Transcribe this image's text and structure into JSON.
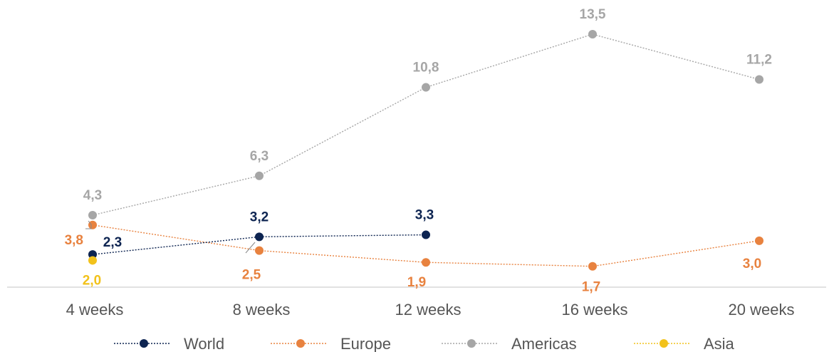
{
  "chart_data": {
    "type": "line",
    "categories": [
      "4 weeks",
      "8 weeks",
      "12 weeks",
      "16 weeks",
      "20 weeks"
    ],
    "series": [
      {
        "name": "World",
        "color": "#0d2451",
        "values": [
          2.3,
          3.2,
          3.3,
          null,
          null
        ],
        "labels": [
          "2,3",
          "3,2",
          "3,3",
          "",
          ""
        ]
      },
      {
        "name": "Europe",
        "color": "#e8823f",
        "values": [
          3.8,
          2.5,
          1.9,
          1.7,
          3.0
        ],
        "labels": [
          "3,8",
          "2,5",
          "1,9",
          "1,7",
          "3,0"
        ]
      },
      {
        "name": "Americas",
        "color": "#a6a6a6",
        "values": [
          4.3,
          6.3,
          10.8,
          13.5,
          11.2
        ],
        "labels": [
          "4,3",
          "6,3",
          "10,8",
          "13,5",
          "11,2"
        ]
      },
      {
        "name": "Asia",
        "color": "#f2c21b",
        "values": [
          2.0,
          null,
          null,
          null,
          null
        ],
        "labels": [
          "2,0",
          "",
          "",
          "",
          ""
        ]
      }
    ],
    "title": "",
    "xlabel": "",
    "ylabel": "",
    "ylim": [
      0,
      15
    ],
    "grid": false,
    "legend": "bottom"
  }
}
